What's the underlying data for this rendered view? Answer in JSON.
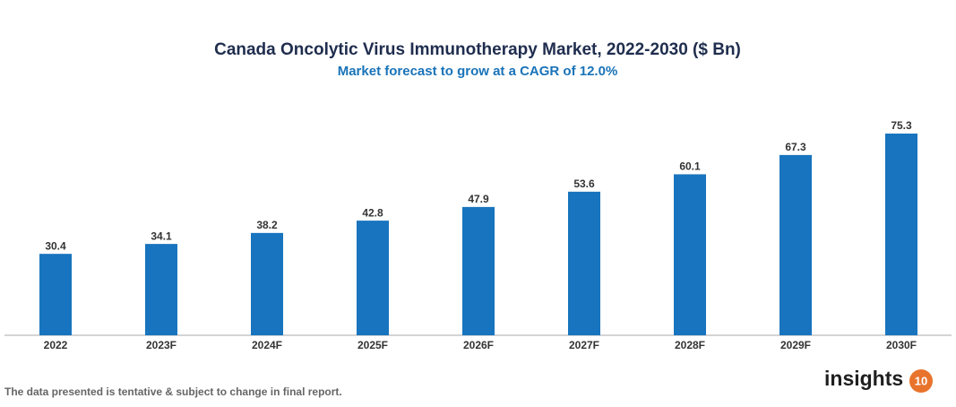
{
  "chart_data": {
    "type": "bar",
    "title": "Canada Oncolytic Virus Immunotherapy Market, 2022-2030 ($ Bn)",
    "subtitle": "Market forecast to grow at a CAGR of 12.0%",
    "categories": [
      "2022",
      "2023F",
      "2024F",
      "2025F",
      "2026F",
      "2027F",
      "2028F",
      "2029F",
      "2030F"
    ],
    "values": [
      30.4,
      34.1,
      38.2,
      42.8,
      47.9,
      53.6,
      60.1,
      67.3,
      75.3
    ],
    "color": "#1874be",
    "footnote": "The data presented is tentative & subject to change in final report.",
    "logo": {
      "text": "insights",
      "badge": "10"
    }
  }
}
